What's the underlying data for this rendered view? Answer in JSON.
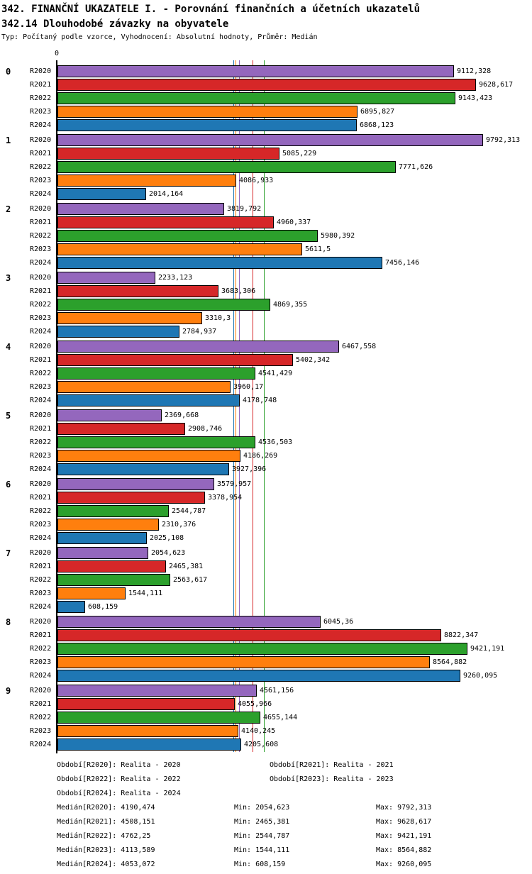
{
  "header": {
    "title": "342. FINANČNÍ UKAZATELE I. - Porovnání finančních a účetních ukazatelů",
    "subtitle": "342.14 Dlouhodobé závazky na obyvatele",
    "meta": "Typ: Počítaný podle vzorce, Vyhodnocení: Absolutní hodnoty, Průměr: Medián"
  },
  "chart_data": {
    "type": "bar",
    "orientation": "horizontal",
    "x_origin_label": "0",
    "xlim": [
      0,
      9800
    ],
    "grid": false,
    "years": [
      "R2020",
      "R2021",
      "R2022",
      "R2023",
      "R2024"
    ],
    "year_colors": [
      "#9467bd",
      "#d62728",
      "#2ca02c",
      "#ff7f0e",
      "#1f77b4"
    ],
    "groups": [
      {
        "label": "0",
        "values": [
          9112.328,
          9628.617,
          9143.423,
          6895.827,
          6868.123
        ],
        "value_labels": [
          "9112,328",
          "9628,617",
          "9143,423",
          "6895,827",
          "6868,123"
        ]
      },
      {
        "label": "1",
        "values": [
          9792.313,
          5085.229,
          7771.626,
          4086.933,
          2014.164
        ],
        "value_labels": [
          "9792,313",
          "5085,229",
          "7771,626",
          "4086,933",
          "2014,164"
        ]
      },
      {
        "label": "2",
        "values": [
          3819.792,
          4960.337,
          5980.392,
          5611.5,
          7456.146
        ],
        "value_labels": [
          "3819,792",
          "4960,337",
          "5980,392",
          "5611,5",
          "7456,146"
        ]
      },
      {
        "label": "3",
        "values": [
          2233.123,
          3683.306,
          4869.355,
          3310.3,
          2784.937
        ],
        "value_labels": [
          "2233,123",
          "3683,306",
          "4869,355",
          "3310,3",
          "2784,937"
        ]
      },
      {
        "label": "4",
        "values": [
          6467.558,
          5402.342,
          4541.429,
          3960.17,
          4178.748
        ],
        "value_labels": [
          "6467,558",
          "5402,342",
          "4541,429",
          "3960,17",
          "4178,748"
        ]
      },
      {
        "label": "5",
        "values": [
          2369.668,
          2908.746,
          4536.503,
          4186.269,
          3927.396
        ],
        "value_labels": [
          "2369,668",
          "2908,746",
          "4536,503",
          "4186,269",
          "3927,396"
        ]
      },
      {
        "label": "6",
        "values": [
          3579.957,
          3378.954,
          2544.787,
          2310.376,
          2025.108
        ],
        "value_labels": [
          "3579,957",
          "3378,954",
          "2544,787",
          "2310,376",
          "2025,108"
        ]
      },
      {
        "label": "7",
        "values": [
          2054.623,
          2465.381,
          2563.617,
          1544.111,
          608.159
        ],
        "value_labels": [
          "2054,623",
          "2465,381",
          "2563,617",
          "1544,111",
          "608,159"
        ]
      },
      {
        "label": "8",
        "values": [
          6045.36,
          8822.347,
          9421.191,
          8564.882,
          9260.095
        ],
        "value_labels": [
          "6045,36",
          "8822,347",
          "9421,191",
          "8564,882",
          "9260,095"
        ]
      },
      {
        "label": "9",
        "values": [
          4561.156,
          4055.966,
          4655.144,
          4140.245,
          4205.608
        ],
        "value_labels": [
          "4561,156",
          "4055,966",
          "4655,144",
          "4140,245",
          "4205,608"
        ]
      }
    ],
    "median_lines": [
      {
        "year": "R2020",
        "value": 4190.474,
        "color": "#9467bd"
      },
      {
        "year": "R2021",
        "value": 4508.151,
        "color": "#d62728"
      },
      {
        "year": "R2022",
        "value": 4762.25,
        "color": "#2ca02c"
      },
      {
        "year": "R2023",
        "value": 4113.589,
        "color": "#ff7f0e"
      },
      {
        "year": "R2024",
        "value": 4053.072,
        "color": "#1f77b4"
      }
    ]
  },
  "footer": {
    "periods": [
      "Období[R2020]: Realita - 2020",
      "Období[R2021]: Realita - 2021",
      "Období[R2022]: Realita - 2022",
      "Období[R2023]: Realita - 2023",
      "Období[R2024]: Realita - 2024"
    ],
    "stats": [
      {
        "median": "Medián[R2020]: 4190,474",
        "min": "Min: 2054,623",
        "max": "Max: 9792,313"
      },
      {
        "median": "Medián[R2021]: 4508,151",
        "min": "Min: 2465,381",
        "max": "Max: 9628,617"
      },
      {
        "median": "Medián[R2022]: 4762,25",
        "min": "Min: 2544,787",
        "max": "Max: 9421,191"
      },
      {
        "median": "Medián[R2023]: 4113,589",
        "min": "Min: 1544,111",
        "max": "Max: 8564,882"
      },
      {
        "median": "Medián[R2024]: 4053,072",
        "min": "Min: 608,159",
        "max": "Max: 9260,095"
      }
    ]
  }
}
